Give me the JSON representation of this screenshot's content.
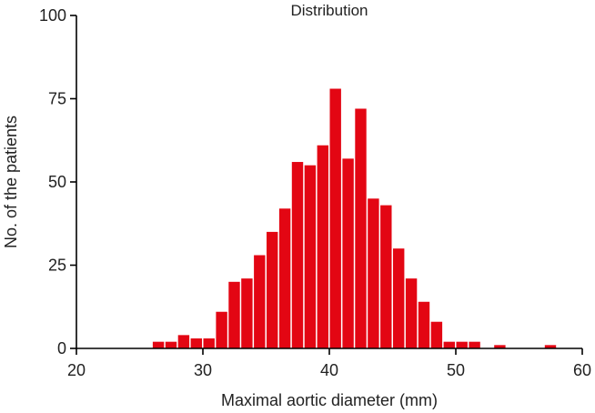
{
  "chart_data": {
    "type": "bar",
    "title": "Distribution",
    "xlabel": "Maximal aortic diameter (mm)",
    "ylabel": "No. of the patients",
    "xlim": [
      20,
      60
    ],
    "ylim": [
      0,
      100
    ],
    "xticks": [
      "20",
      "30",
      "40",
      "50",
      "60"
    ],
    "yticks": [
      "0",
      "25",
      "50",
      "75",
      "100"
    ],
    "bin_width": 1,
    "bar_color": "#e30613",
    "grid": false,
    "legend": "none",
    "bins": [
      {
        "x": 26,
        "y": 2
      },
      {
        "x": 27,
        "y": 2
      },
      {
        "x": 28,
        "y": 4
      },
      {
        "x": 29,
        "y": 3
      },
      {
        "x": 30,
        "y": 3
      },
      {
        "x": 31,
        "y": 11
      },
      {
        "x": 32,
        "y": 20
      },
      {
        "x": 33,
        "y": 21
      },
      {
        "x": 34,
        "y": 28
      },
      {
        "x": 35,
        "y": 35
      },
      {
        "x": 36,
        "y": 42
      },
      {
        "x": 37,
        "y": 56
      },
      {
        "x": 38,
        "y": 55
      },
      {
        "x": 39,
        "y": 61
      },
      {
        "x": 40,
        "y": 78
      },
      {
        "x": 41,
        "y": 57
      },
      {
        "x": 42,
        "y": 72
      },
      {
        "x": 43,
        "y": 45
      },
      {
        "x": 44,
        "y": 43
      },
      {
        "x": 45,
        "y": 30
      },
      {
        "x": 46,
        "y": 21
      },
      {
        "x": 47,
        "y": 14
      },
      {
        "x": 48,
        "y": 8
      },
      {
        "x": 49,
        "y": 2
      },
      {
        "x": 50,
        "y": 2
      },
      {
        "x": 51,
        "y": 2
      },
      {
        "x": 53,
        "y": 1
      },
      {
        "x": 57,
        "y": 1
      }
    ]
  }
}
